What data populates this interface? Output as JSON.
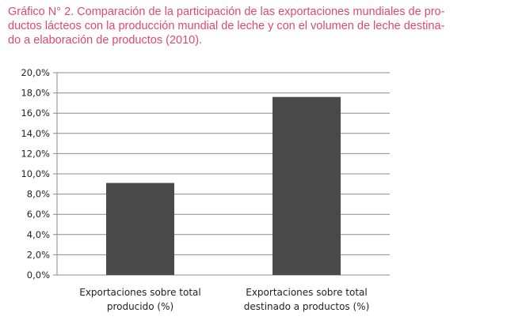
{
  "caption": {
    "lines": [
      "Gráfico N° 2. Comparación de la participación de las exportaciones mundiales de pro-",
      "ductos lácteos con la producción mundial de leche y con el volumen de leche destina-",
      "do a elaboración de productos (2010)."
    ]
  },
  "chart_data": {
    "type": "bar",
    "title": "",
    "xlabel": "",
    "ylabel": "",
    "categories": [
      [
        "Exportaciones sobre total",
        "producido (%)"
      ],
      [
        "Exportaciones sobre total",
        "destinado a productos (%)"
      ]
    ],
    "values": [
      9.1,
      17.6
    ],
    "ylim": [
      0,
      20
    ],
    "yticks": [
      "0,0%",
      "2,0%",
      "4,0%",
      "6,0%",
      "8,0%",
      "10,0%",
      "12,0%",
      "14,0%",
      "16,0%",
      "18,0%",
      "20,0%"
    ],
    "grid": true,
    "legend": "none",
    "bar_color": "#4a4a4a",
    "grid_color": "#8c8c8c"
  }
}
